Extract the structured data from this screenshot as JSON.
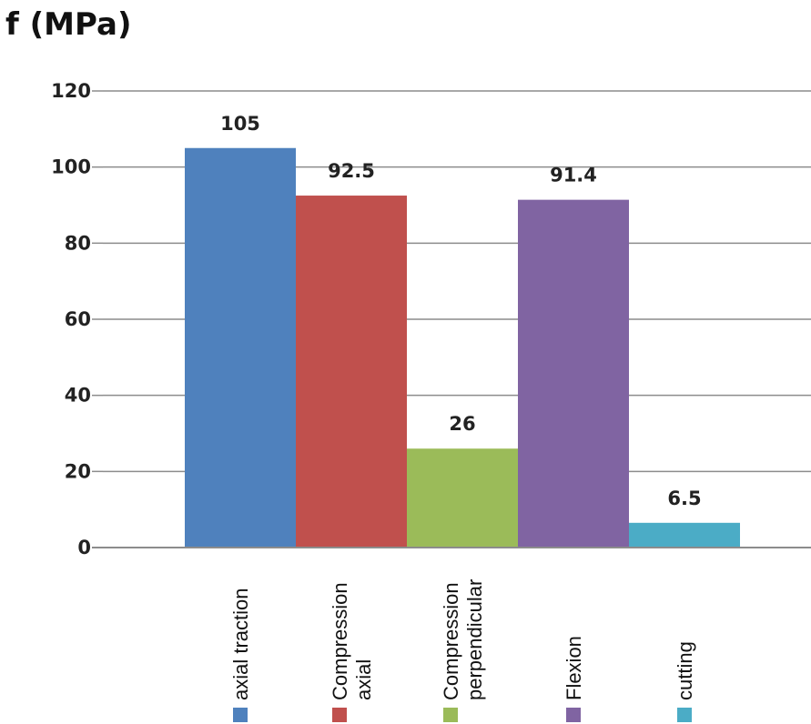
{
  "chart_data": {
    "type": "bar",
    "ylabel": "f (MPa)",
    "ylim": [
      0,
      120
    ],
    "yticks": [
      0,
      20,
      40,
      60,
      80,
      100,
      120
    ],
    "grid": true,
    "legend": "none",
    "categories": [
      [
        "axial traction"
      ],
      [
        "Compression",
        "axial"
      ],
      [
        "Compression",
        "perpendicular"
      ],
      [
        "Flexion"
      ],
      [
        "cutting"
      ]
    ],
    "values": [
      105,
      92.5,
      26,
      91.4,
      6.5
    ],
    "value_labels": [
      "105",
      "92.5",
      "26",
      "91.4",
      "6.5"
    ],
    "colors": [
      "#4F81BD",
      "#C0504D",
      "#9BBB59",
      "#8064A2",
      "#4BACC6"
    ]
  }
}
